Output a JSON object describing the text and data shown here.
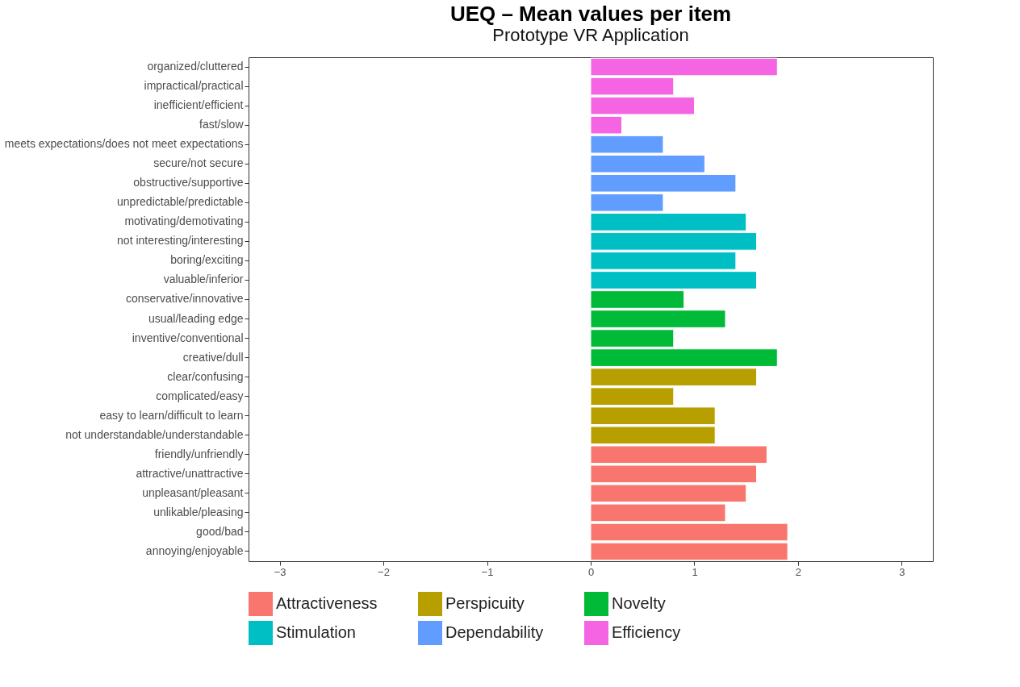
{
  "chart_data": {
    "type": "bar",
    "orientation": "horizontal",
    "title": "UEQ – Mean values per item",
    "subtitle": "Prototype VR Application",
    "categories": [
      "organized/cluttered",
      "impractical/practical",
      "inefficient/efficient",
      "fast/slow",
      "meets expectations/does not meet expectations",
      "secure/not secure",
      "obstructive/supportive",
      "unpredictable/predictable",
      "motivating/demotivating",
      "not interesting/interesting",
      "boring/exciting",
      "valuable/inferior",
      "conservative/innovative",
      "usual/leading edge",
      "inventive/conventional",
      "creative/dull",
      "clear/confusing",
      "complicated/easy",
      "easy to learn/difficult to learn",
      "not understandable/understandable",
      "friendly/unfriendly",
      "attractive/unattractive",
      "unpleasant/pleasant",
      "unlikable/pleasing",
      "good/bad",
      "annoying/enjoyable"
    ],
    "series": [
      {
        "name": "Attractiveness",
        "color": "#f8766d",
        "values": [
          null,
          null,
          null,
          null,
          null,
          null,
          null,
          null,
          null,
          null,
          null,
          null,
          null,
          null,
          null,
          null,
          null,
          null,
          null,
          null,
          1.7,
          1.6,
          1.5,
          1.3,
          1.9,
          1.9
        ]
      },
      {
        "name": "Perspicuity",
        "color": "#b79f00",
        "values": [
          null,
          null,
          null,
          null,
          null,
          null,
          null,
          null,
          null,
          null,
          null,
          null,
          null,
          null,
          null,
          null,
          1.6,
          0.8,
          1.2,
          1.2,
          null,
          null,
          null,
          null,
          null,
          null
        ]
      },
      {
        "name": "Novelty",
        "color": "#00ba38",
        "values": [
          null,
          null,
          null,
          null,
          null,
          null,
          null,
          null,
          null,
          null,
          null,
          null,
          0.9,
          1.3,
          0.8,
          1.8,
          null,
          null,
          null,
          null,
          null,
          null,
          null,
          null,
          null,
          null
        ]
      },
      {
        "name": "Stimulation",
        "color": "#00bfc4",
        "values": [
          null,
          null,
          null,
          null,
          null,
          null,
          null,
          null,
          1.5,
          1.6,
          1.4,
          1.6,
          null,
          null,
          null,
          null,
          null,
          null,
          null,
          null,
          null,
          null,
          null,
          null,
          null,
          null
        ]
      },
      {
        "name": "Dependability",
        "color": "#619cff",
        "values": [
          null,
          null,
          null,
          null,
          0.7,
          1.1,
          1.4,
          0.7,
          null,
          null,
          null,
          null,
          null,
          null,
          null,
          null,
          null,
          null,
          null,
          null,
          null,
          null,
          null,
          null,
          null,
          null
        ]
      },
      {
        "name": "Efficiency",
        "color": "#f564e3",
        "values": [
          1.8,
          0.8,
          1.0,
          0.3,
          null,
          null,
          null,
          null,
          null,
          null,
          null,
          null,
          null,
          null,
          null,
          null,
          null,
          null,
          null,
          null,
          null,
          null,
          null,
          null,
          null,
          null
        ]
      }
    ],
    "xlim": [
      -3.3,
      3.3
    ],
    "xticks": [
      -3,
      -2,
      -1,
      0,
      1,
      2,
      3
    ],
    "grid": false,
    "legend": "bottom"
  }
}
